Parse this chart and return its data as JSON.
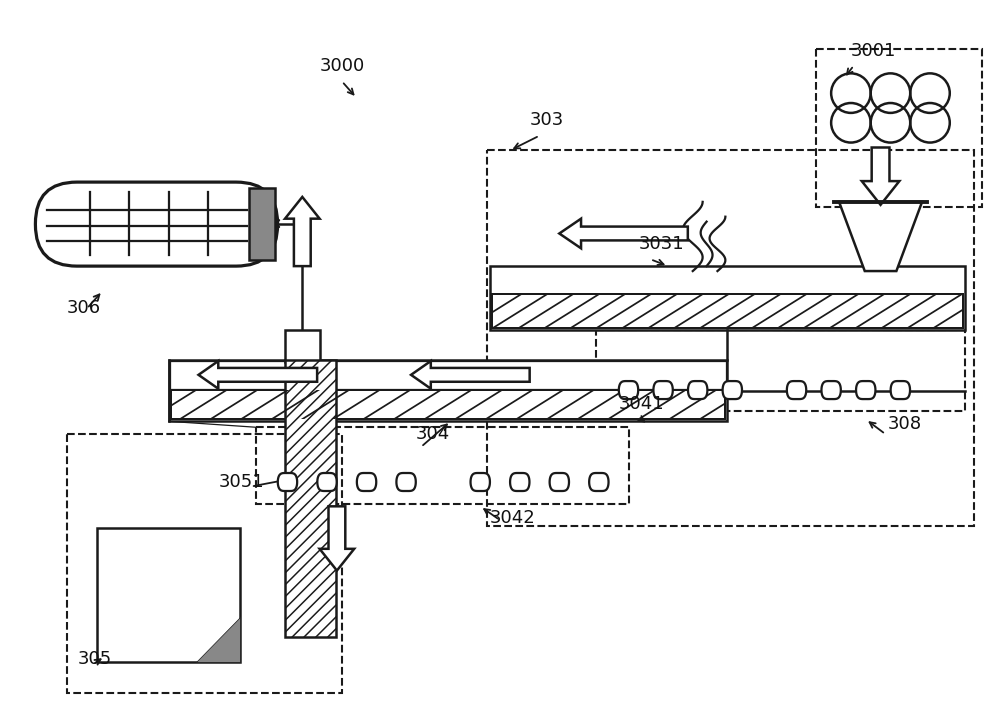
{
  "bg_color": "#ffffff",
  "lc": "#1a1a1a",
  "lw": 1.8,
  "figsize": [
    10.0,
    7.24
  ]
}
